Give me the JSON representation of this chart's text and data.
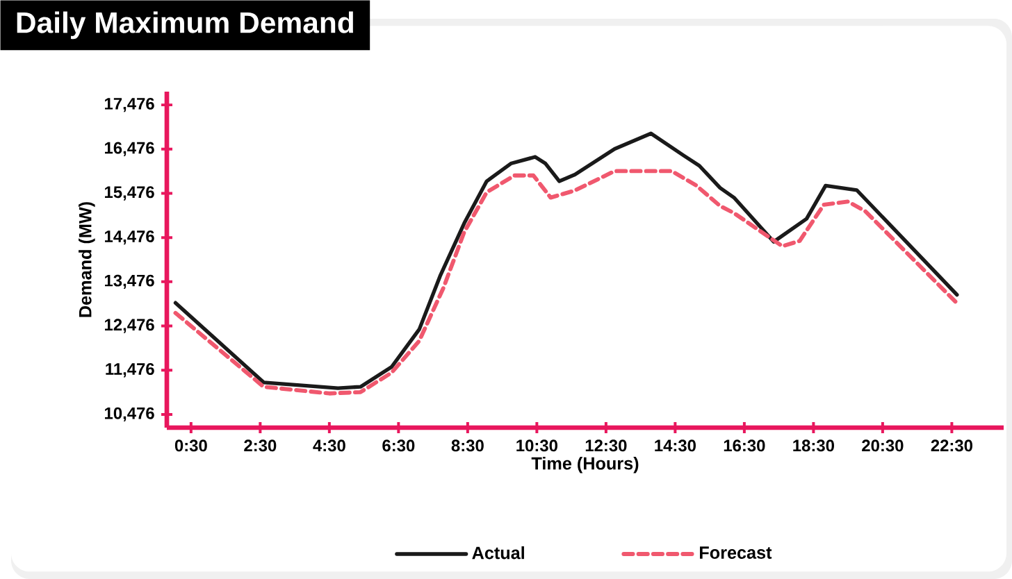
{
  "chart_data": {
    "type": "line",
    "title": "Daily Maximum Demand",
    "xlabel": "Time (Hours)",
    "ylabel": "Demand (MW)",
    "xlim": [
      -0.2,
      24
    ],
    "ylim": [
      10176,
      17776
    ],
    "xticks": [
      {
        "value": 0.5,
        "label": "0:30"
      },
      {
        "value": 2.5,
        "label": "2:30"
      },
      {
        "value": 4.5,
        "label": "4:30"
      },
      {
        "value": 6.5,
        "label": "6:30"
      },
      {
        "value": 8.5,
        "label": "8:30"
      },
      {
        "value": 10.5,
        "label": "10:30"
      },
      {
        "value": 12.5,
        "label": "12:30"
      },
      {
        "value": 14.5,
        "label": "14:30"
      },
      {
        "value": 16.5,
        "label": "16:30"
      },
      {
        "value": 18.5,
        "label": "18:30"
      },
      {
        "value": 20.5,
        "label": "20:30"
      },
      {
        "value": 22.5,
        "label": "22:30"
      }
    ],
    "yticks": [
      {
        "value": 10476,
        "label": "10,476"
      },
      {
        "value": 11476,
        "label": "11,476"
      },
      {
        "value": 12476,
        "label": "12,476"
      },
      {
        "value": 13476,
        "label": "13,476"
      },
      {
        "value": 14476,
        "label": "14,476"
      },
      {
        "value": 15476,
        "label": "15,476"
      },
      {
        "value": 16476,
        "label": "16,476"
      },
      {
        "value": 17476,
        "label": "17,476"
      }
    ],
    "grid": false,
    "legend": "bottom",
    "marker": "none",
    "series": [
      {
        "name": "Actual",
        "color": "#1a1a1a",
        "line_style": "solid",
        "x": [
          0.05,
          2.6,
          4.75,
          5.4,
          6.3,
          7.1,
          7.7,
          8.4,
          9.05,
          9.75,
          10.45,
          10.75,
          11.15,
          11.6,
          12.75,
          13.8,
          14.75,
          15.2,
          15.8,
          16.2,
          17.35,
          18.3,
          18.85,
          19.75,
          22.65
        ],
        "values": [
          13000,
          11200,
          11070,
          11100,
          11550,
          12400,
          13600,
          14800,
          15750,
          16150,
          16300,
          16150,
          15750,
          15900,
          16480,
          16830,
          16330,
          16100,
          15600,
          15380,
          14380,
          14900,
          15650,
          15550,
          13180
        ]
      },
      {
        "name": "Forecast",
        "color": "#f0586e",
        "line_style": "dashed",
        "x": [
          0.05,
          2.6,
          4.5,
          5.4,
          6.3,
          7.1,
          7.8,
          8.4,
          9.05,
          9.85,
          10.4,
          10.9,
          11.6,
          12.75,
          14.4,
          15.1,
          15.8,
          16.2,
          17.6,
          18.1,
          18.8,
          19.5,
          20.0,
          22.65
        ],
        "values": [
          12770,
          11100,
          10950,
          10980,
          11420,
          12140,
          13340,
          14600,
          15500,
          15880,
          15880,
          15380,
          15540,
          15980,
          15980,
          15660,
          15190,
          15030,
          14280,
          14400,
          15220,
          15290,
          15070,
          12990
        ]
      }
    ]
  }
}
